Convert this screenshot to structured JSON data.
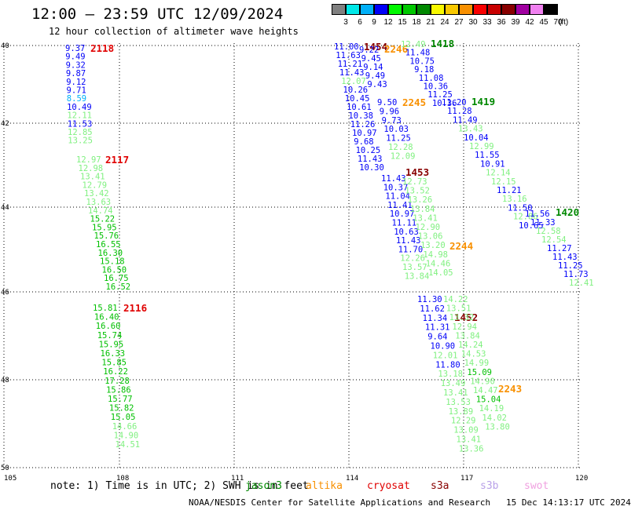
{
  "title": "12:00 — 23:59 UTC 12/09/2024",
  "subtitle": "12 hour collection of altimeter wave heights",
  "scale": {
    "unit": "(ft)",
    "colors": [
      "#808080",
      "#00e8e8",
      "#00b0f8",
      "#0000f8",
      "#00f800",
      "#00c800",
      "#008800",
      "#f8f800",
      "#f8c800",
      "#f89000",
      "#f80000",
      "#c80000",
      "#880000",
      "#a000a0",
      "#f080f0",
      "#000000"
    ],
    "ticks": [
      "3",
      "6",
      "9",
      "12",
      "15",
      "18",
      "21",
      "24",
      "27",
      "30",
      "33",
      "36",
      "39",
      "42",
      "45",
      "70"
    ]
  },
  "axes": {
    "lat_labels": [
      "40",
      "42",
      "44",
      "46",
      "48",
      "50"
    ],
    "lon_labels": [
      "105",
      "108",
      "111",
      "114",
      "117",
      "120"
    ]
  },
  "tracks": [
    {
      "label": "2118",
      "label_color": "#e00000",
      "points": [
        {
          "v": "9.37",
          "c": "#0000f8"
        },
        {
          "v": "9.49",
          "c": "#0000f8"
        },
        {
          "v": "9.32",
          "c": "#0000f8"
        },
        {
          "v": "9.87",
          "c": "#0000f8"
        },
        {
          "v": "9.12",
          "c": "#0000f8"
        },
        {
          "v": "9.71",
          "c": "#0000f8"
        },
        {
          "v": "8.59",
          "c": "#00b0f8"
        },
        {
          "v": "10.49",
          "c": "#0000f8"
        },
        {
          "v": "12.11",
          "c": "#80f080"
        },
        {
          "v": "11.53",
          "c": "#0000f8"
        },
        {
          "v": "12.85",
          "c": "#80f080"
        },
        {
          "v": "13.25",
          "c": "#80f080"
        }
      ]
    },
    {
      "label": "2117",
      "label_color": "#e00000",
      "points": [
        {
          "v": "12.97",
          "c": "#80f080"
        },
        {
          "v": "12.98",
          "c": "#80f080"
        },
        {
          "v": "13.41",
          "c": "#80f080"
        },
        {
          "v": "12.79",
          "c": "#80f080"
        },
        {
          "v": "13.42",
          "c": "#80f080"
        },
        {
          "v": "13.63",
          "c": "#80f080"
        },
        {
          "v": "14.74",
          "c": "#80f080"
        },
        {
          "v": "15.22",
          "c": "#00c000"
        },
        {
          "v": "15.95",
          "c": "#00c000"
        },
        {
          "v": "15.76",
          "c": "#00c000"
        },
        {
          "v": "16.55",
          "c": "#00c000"
        },
        {
          "v": "16.30",
          "c": "#00c000"
        },
        {
          "v": "15.18",
          "c": "#00c000"
        },
        {
          "v": "16.50",
          "c": "#00c000"
        },
        {
          "v": "16.75",
          "c": "#00c000"
        },
        {
          "v": "16.52",
          "c": "#00c000"
        }
      ]
    },
    {
      "label": "2116",
      "label_color": "#e00000",
      "points": [
        {
          "v": "15.81",
          "c": "#00c000"
        },
        {
          "v": "16.40",
          "c": "#00c000"
        },
        {
          "v": "16.60",
          "c": "#00c000"
        },
        {
          "v": "15.74",
          "c": "#00c000"
        },
        {
          "v": "15.95",
          "c": "#00c000"
        },
        {
          "v": "16.33",
          "c": "#00c000"
        },
        {
          "v": "15.85",
          "c": "#00c000"
        },
        {
          "v": "16.22",
          "c": "#00c000"
        },
        {
          "v": "17.28",
          "c": "#00c000"
        },
        {
          "v": "15.86",
          "c": "#00c000"
        },
        {
          "v": "15.77",
          "c": "#00c000"
        },
        {
          "v": "15.82",
          "c": "#00c000"
        },
        {
          "v": "15.05",
          "c": "#00c000"
        },
        {
          "v": "14.66",
          "c": "#80f080"
        },
        {
          "v": "14.90",
          "c": "#80f080"
        },
        {
          "v": "14.51",
          "c": "#80f080"
        }
      ]
    },
    {
      "label": "1454",
      "label_color": "#880000",
      "points": [
        {
          "v": "11.00",
          "c": "#0000f8"
        },
        {
          "v": "11.63",
          "c": "#0000f8"
        },
        {
          "v": "11.21",
          "c": "#0000f8"
        },
        {
          "v": "11.43",
          "c": "#0000f8"
        },
        {
          "v": "12.07",
          "c": "#80f080"
        },
        {
          "v": "10.26",
          "c": "#0000f8"
        },
        {
          "v": "10.45",
          "c": "#0000f8"
        },
        {
          "v": "10.61",
          "c": "#0000f8"
        },
        {
          "v": "10.38",
          "c": "#0000f8"
        },
        {
          "v": "11.26",
          "c": "#0000f8"
        },
        {
          "v": "10.97",
          "c": "#0000f8"
        },
        {
          "v": "9.68",
          "c": "#0000f8"
        },
        {
          "v": "10.25",
          "c": "#0000f8"
        },
        {
          "v": "11.43",
          "c": "#0000f8"
        },
        {
          "v": "10.30",
          "c": "#0000f8"
        }
      ]
    },
    {
      "label": "2246",
      "label_color": "#f89000",
      "points": [
        {
          "v": "9.22",
          "c": "#0000f8"
        },
        {
          "v": "9.45",
          "c": "#0000f8"
        },
        {
          "v": "9.14",
          "c": "#0000f8"
        },
        {
          "v": "9.49",
          "c": "#0000f8"
        },
        {
          "v": "9.43",
          "c": "#0000f8"
        }
      ]
    },
    {
      "label": "2245",
      "label_color": "#f89000",
      "points": [
        {
          "v": "9.50",
          "c": "#0000f8"
        },
        {
          "v": "9.96",
          "c": "#0000f8"
        },
        {
          "v": "9.73",
          "c": "#0000f8"
        },
        {
          "v": "10.03",
          "c": "#0000f8"
        },
        {
          "v": "11.25",
          "c": "#0000f8"
        },
        {
          "v": "12.28",
          "c": "#80f080"
        },
        {
          "v": "12.09",
          "c": "#80f080"
        }
      ]
    },
    {
      "label": "1453",
      "label_color": "#880000",
      "points": [
        {
          "v": "11.43",
          "c": "#0000f8"
        },
        {
          "v": "10.37",
          "c": "#0000f8"
        },
        {
          "v": "11.04",
          "c": "#0000f8"
        },
        {
          "v": "11.41",
          "c": "#0000f8"
        },
        {
          "v": "10.97",
          "c": "#0000f8"
        },
        {
          "v": "11.11",
          "c": "#0000f8"
        },
        {
          "v": "10.63",
          "c": "#0000f8"
        },
        {
          "v": "11.43",
          "c": "#0000f8"
        },
        {
          "v": "11.70",
          "c": "#0000f8"
        },
        {
          "v": "12.26",
          "c": "#80f080"
        },
        {
          "v": "13.57",
          "c": "#80f080"
        },
        {
          "v": "13.84",
          "c": "#80f080"
        }
      ]
    },
    {
      "label": "2244",
      "label_color": "#f89000",
      "points": [
        {
          "v": "12.73",
          "c": "#80f080"
        },
        {
          "v": "13.52",
          "c": "#80f080"
        },
        {
          "v": "13.26",
          "c": "#80f080"
        },
        {
          "v": "13.84",
          "c": "#80f080"
        },
        {
          "v": "13.41",
          "c": "#80f080"
        },
        {
          "v": "12.90",
          "c": "#80f080"
        },
        {
          "v": "13.06",
          "c": "#80f080"
        },
        {
          "v": "13.20",
          "c": "#80f080"
        },
        {
          "v": "14.98",
          "c": "#80f080"
        },
        {
          "v": "14.46",
          "c": "#80f080"
        },
        {
          "v": "14.05",
          "c": "#80f080"
        }
      ]
    },
    {
      "label": "1452",
      "label_color": "#880000",
      "points": [
        {
          "v": "11.30",
          "c": "#0000f8"
        },
        {
          "v": "11.62",
          "c": "#0000f8"
        },
        {
          "v": "11.34",
          "c": "#0000f8"
        },
        {
          "v": "11.31",
          "c": "#0000f8"
        },
        {
          "v": "9.64",
          "c": "#0000f8"
        },
        {
          "v": "10.90",
          "c": "#0000f8"
        },
        {
          "v": "12.01",
          "c": "#80f080"
        },
        {
          "v": "11.80",
          "c": "#0000f8"
        },
        {
          "v": "13.18",
          "c": "#80f080"
        },
        {
          "v": "13.49",
          "c": "#80f080"
        },
        {
          "v": "13.41",
          "c": "#80f080"
        },
        {
          "v": "13.53",
          "c": "#80f080"
        },
        {
          "v": "13.89",
          "c": "#80f080"
        },
        {
          "v": "12.29",
          "c": "#80f080"
        },
        {
          "v": "13.09",
          "c": "#80f080"
        },
        {
          "v": "13.41",
          "c": "#80f080"
        },
        {
          "v": "13.36",
          "c": "#80f080"
        }
      ]
    },
    {
      "label": "2243",
      "label_color": "#f89000",
      "points": [
        {
          "v": "14.22",
          "c": "#80f080"
        },
        {
          "v": "13.51",
          "c": "#80f080"
        },
        {
          "v": "13.32",
          "c": "#80f080"
        },
        {
          "v": "12.94",
          "c": "#80f080"
        },
        {
          "v": "13.84",
          "c": "#80f080"
        },
        {
          "v": "14.24",
          "c": "#80f080"
        },
        {
          "v": "14.53",
          "c": "#80f080"
        },
        {
          "v": "14.99",
          "c": "#80f080"
        },
        {
          "v": "15.09",
          "c": "#00c000"
        },
        {
          "v": "14.90",
          "c": "#80f080"
        },
        {
          "v": "14.47",
          "c": "#80f080"
        },
        {
          "v": "15.04",
          "c": "#00c000"
        },
        {
          "v": "14.19",
          "c": "#80f080"
        },
        {
          "v": "14.02",
          "c": "#80f080"
        },
        {
          "v": "13.80",
          "c": "#80f080"
        }
      ]
    },
    {
      "label": "1418",
      "label_color": "#008800",
      "points": [
        {
          "v": "12.49",
          "c": "#80f080"
        },
        {
          "v": "11.48",
          "c": "#0000f8"
        },
        {
          "v": "10.75",
          "c": "#0000f8"
        },
        {
          "v": "9.18",
          "c": "#0000f8"
        },
        {
          "v": "11.08",
          "c": "#0000f8"
        },
        {
          "v": "10.36",
          "c": "#0000f8"
        },
        {
          "v": "11.25",
          "c": "#0000f8"
        },
        {
          "v": "10.36",
          "c": "#0000f8"
        }
      ]
    },
    {
      "label": "1419",
      "label_color": "#008800",
      "points": [
        {
          "v": "11.20",
          "c": "#0000f8"
        },
        {
          "v": "11.28",
          "c": "#0000f8"
        },
        {
          "v": "11.49",
          "c": "#0000f8"
        },
        {
          "v": "13.43",
          "c": "#80f080"
        },
        {
          "v": "10.04",
          "c": "#0000f8"
        },
        {
          "v": "12.99",
          "c": "#80f080"
        },
        {
          "v": "11.55",
          "c": "#0000f8"
        },
        {
          "v": "10.91",
          "c": "#0000f8"
        },
        {
          "v": "12.14",
          "c": "#80f080"
        },
        {
          "v": "12.15",
          "c": "#80f080"
        },
        {
          "v": "11.21",
          "c": "#0000f8"
        },
        {
          "v": "13.16",
          "c": "#80f080"
        },
        {
          "v": "11.50",
          "c": "#0000f8"
        },
        {
          "v": "12.86",
          "c": "#80f080"
        },
        {
          "v": "10.65",
          "c": "#0000f8"
        }
      ]
    },
    {
      "label": "1420",
      "label_color": "#008800",
      "points": [
        {
          "v": "11.56",
          "c": "#0000f8"
        },
        {
          "v": "11.33",
          "c": "#0000f8"
        },
        {
          "v": "12.58",
          "c": "#80f080"
        },
        {
          "v": "12.54",
          "c": "#80f080"
        },
        {
          "v": "11.27",
          "c": "#0000f8"
        },
        {
          "v": "11.43",
          "c": "#0000f8"
        },
        {
          "v": "11.25",
          "c": "#0000f8"
        },
        {
          "v": "11.73",
          "c": "#0000f8"
        },
        {
          "v": "12.41",
          "c": "#80f080"
        }
      ]
    }
  ],
  "note": "note: 1) Time is in UTC; 2) SWH is in feet",
  "sources": [
    {
      "name": "jason3",
      "color": "#008800"
    },
    {
      "name": "altika",
      "color": "#f89000"
    },
    {
      "name": "cryosat",
      "color": "#e00000"
    },
    {
      "name": "s3a",
      "color": "#880000"
    },
    {
      "name": "s3b",
      "color": "#b8a0e8"
    },
    {
      "name": "swot",
      "color": "#f0a0e0"
    }
  ],
  "credit": "NOAA/NESDIS Center for Satellite Applications and Research   15 Dec 14:13:17 UTC 2024"
}
